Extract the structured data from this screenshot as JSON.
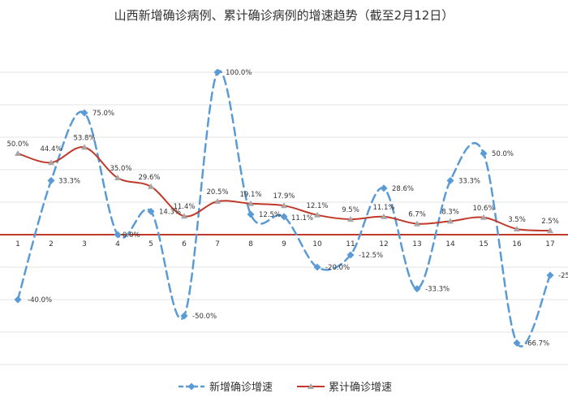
{
  "chart_data": {
    "type": "line",
    "title": "山西新增确诊病例、累计确诊病例的增速趋势（截至2月12日）",
    "xlabel": "",
    "ylabel": "",
    "ylim": [
      -1.0,
      1.0
    ],
    "grid": true,
    "legend_position": "bottom",
    "x": [
      "1",
      "2",
      "3",
      "4",
      "5",
      "6",
      "7",
      "8",
      "9",
      "10",
      "11",
      "12",
      "13",
      "14",
      "15",
      "16",
      "17"
    ],
    "series": [
      {
        "name": "新增确诊增速",
        "color": "#5b9bd5",
        "style": "dashed-smooth",
        "values": [
          -40.0,
          33.3,
          75.0,
          0.0,
          14.3,
          -50.0,
          100.0,
          12.5,
          11.1,
          -20.0,
          -12.5,
          28.6,
          -33.3,
          33.3,
          50.0,
          -66.7,
          -25.0
        ],
        "labels": [
          "-40.0%",
          "33.3%",
          "75.0%",
          "0.0%",
          "14.3%",
          "-50.0%",
          "100.0%",
          "12.5%",
          "11.1%",
          "-20.0%",
          "-12.5%",
          "28.6%",
          "-33.3%",
          "33.3%",
          "50.0%",
          "-66.7%",
          "-25"
        ]
      },
      {
        "name": "累计确诊增速",
        "color": "#c0392b",
        "style": "solid-smooth",
        "values": [
          50.0,
          44.4,
          53.8,
          35.0,
          29.6,
          11.4,
          20.5,
          19.1,
          17.9,
          12.1,
          9.5,
          11.1,
          6.7,
          8.3,
          10.6,
          3.5,
          2.5
        ],
        "labels": [
          "50.0%",
          "44.4%",
          "53.8%",
          "35.0%",
          "29.6%",
          "11.4%",
          "20.5%",
          "19.1%",
          "17.9%",
          "12.1%",
          "9.5%",
          "11.1%",
          "6.7%",
          "8.3%",
          "10.6%",
          "3.5%",
          "2.5%"
        ]
      }
    ]
  }
}
